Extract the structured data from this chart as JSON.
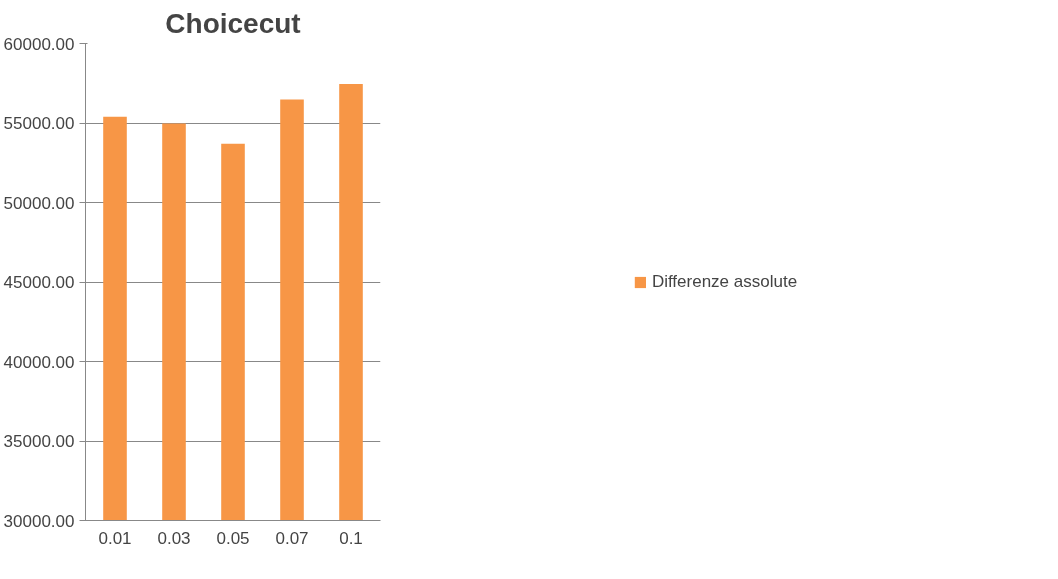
{
  "chart_data": {
    "type": "bar",
    "title": "Choicecut",
    "categories": [
      "0.01",
      "0.03",
      "0.05",
      "0.07",
      "0.1"
    ],
    "series": [
      {
        "name": "Differenze assolute",
        "color": "#f79646",
        "values": [
          55400,
          54970,
          53700,
          56480,
          57450
        ]
      }
    ],
    "ylim": [
      30000,
      60000
    ],
    "yticks": [
      {
        "value": 30000,
        "label": "30000.00"
      },
      {
        "value": 35000,
        "label": "35000.00"
      },
      {
        "value": 40000,
        "label": "40000.00"
      },
      {
        "value": 45000,
        "label": "45000.00"
      },
      {
        "value": 50000,
        "label": "50000.00"
      },
      {
        "value": 55000,
        "label": "55000.00"
      },
      {
        "value": 60000,
        "label": "60000.00"
      }
    ],
    "grid": "y",
    "legend": "right"
  }
}
